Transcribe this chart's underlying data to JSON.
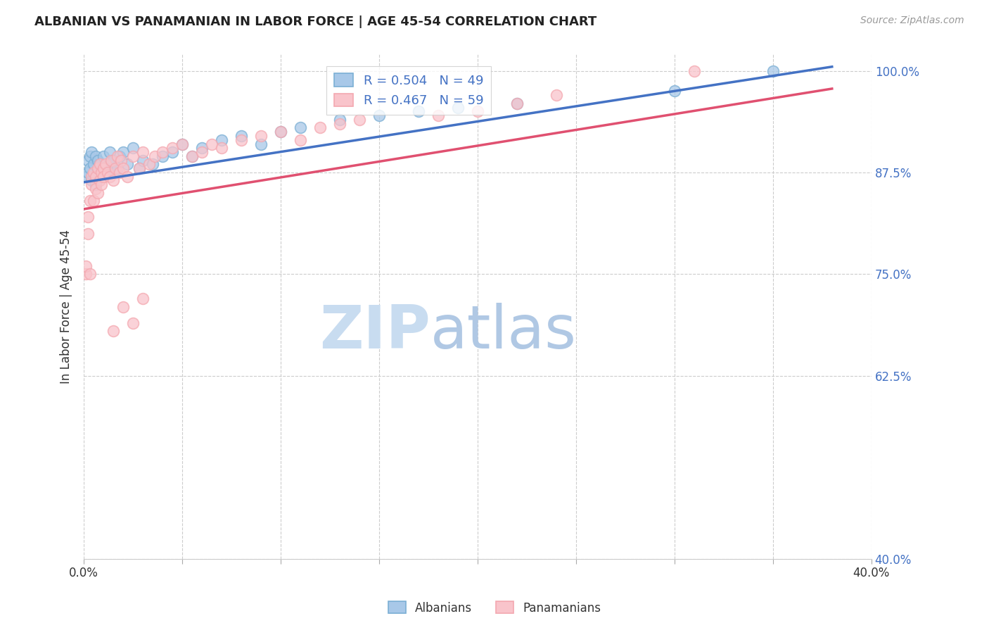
{
  "title": "ALBANIAN VS PANAMANIAN IN LABOR FORCE | AGE 45-54 CORRELATION CHART",
  "source": "Source: ZipAtlas.com",
  "ylabel": "In Labor Force | Age 45-54",
  "xlim": [
    0.0,
    0.4
  ],
  "ylim": [
    0.4,
    1.02
  ],
  "xtick_vals": [
    0.0,
    0.05,
    0.1,
    0.15,
    0.2,
    0.25,
    0.3,
    0.35,
    0.4
  ],
  "xtick_labels": [
    "0.0%",
    "",
    "",
    "",
    "",
    "",
    "",
    "",
    "40.0%"
  ],
  "ytick_vals": [
    0.4,
    0.625,
    0.75,
    0.875,
    1.0
  ],
  "ytick_labels": [
    "40.0%",
    "62.5%",
    "75.0%",
    "87.5%",
    "100.0%"
  ],
  "grid_color": "#cccccc",
  "background_color": "#ffffff",
  "legend_line1": "R = 0.504   N = 49",
  "legend_line2": "R = 0.467   N = 59",
  "legend_label_albanians": "Albanians",
  "legend_label_panamanians": "Panamanians",
  "blue_color": "#7BAFD4",
  "pink_color": "#F4A8B0",
  "blue_fill": "#A8C8E8",
  "pink_fill": "#F9C4CB",
  "blue_line_color": "#4472C4",
  "pink_line_color": "#E05070",
  "r_n_text_color": "#4472C4",
  "watermark_zip_color": "#C8DCF0",
  "watermark_atlas_color": "#B0C8E4",
  "albanians_x": [
    0.001,
    0.002,
    0.002,
    0.003,
    0.003,
    0.004,
    0.004,
    0.005,
    0.005,
    0.006,
    0.006,
    0.007,
    0.007,
    0.008,
    0.008,
    0.009,
    0.01,
    0.01,
    0.011,
    0.012,
    0.013,
    0.014,
    0.015,
    0.016,
    0.017,
    0.018,
    0.02,
    0.022,
    0.025,
    0.028,
    0.03,
    0.035,
    0.04,
    0.045,
    0.05,
    0.055,
    0.06,
    0.07,
    0.08,
    0.09,
    0.1,
    0.11,
    0.13,
    0.15,
    0.17,
    0.19,
    0.22,
    0.3,
    0.35
  ],
  "albanians_y": [
    0.87,
    0.875,
    0.89,
    0.88,
    0.895,
    0.865,
    0.9,
    0.87,
    0.885,
    0.86,
    0.895,
    0.875,
    0.89,
    0.87,
    0.885,
    0.88,
    0.875,
    0.895,
    0.88,
    0.875,
    0.9,
    0.885,
    0.89,
    0.875,
    0.88,
    0.895,
    0.9,
    0.885,
    0.905,
    0.88,
    0.89,
    0.885,
    0.895,
    0.9,
    0.91,
    0.895,
    0.905,
    0.915,
    0.92,
    0.91,
    0.925,
    0.93,
    0.94,
    0.945,
    0.95,
    0.955,
    0.96,
    0.975,
    1.0
  ],
  "panamanians_x": [
    0.001,
    0.001,
    0.002,
    0.002,
    0.003,
    0.003,
    0.004,
    0.004,
    0.005,
    0.005,
    0.006,
    0.006,
    0.007,
    0.007,
    0.008,
    0.008,
    0.009,
    0.009,
    0.01,
    0.01,
    0.011,
    0.012,
    0.013,
    0.014,
    0.015,
    0.016,
    0.017,
    0.018,
    0.019,
    0.02,
    0.022,
    0.025,
    0.028,
    0.03,
    0.033,
    0.036,
    0.04,
    0.045,
    0.05,
    0.055,
    0.06,
    0.065,
    0.07,
    0.08,
    0.09,
    0.1,
    0.11,
    0.12,
    0.13,
    0.14,
    0.015,
    0.02,
    0.025,
    0.03,
    0.18,
    0.2,
    0.22,
    0.24,
    0.31
  ],
  "panamanians_y": [
    0.75,
    0.76,
    0.8,
    0.82,
    0.75,
    0.84,
    0.87,
    0.86,
    0.84,
    0.875,
    0.855,
    0.87,
    0.88,
    0.85,
    0.865,
    0.885,
    0.875,
    0.86,
    0.88,
    0.87,
    0.885,
    0.875,
    0.87,
    0.89,
    0.865,
    0.88,
    0.895,
    0.875,
    0.89,
    0.88,
    0.87,
    0.895,
    0.88,
    0.9,
    0.885,
    0.895,
    0.9,
    0.905,
    0.91,
    0.895,
    0.9,
    0.91,
    0.905,
    0.915,
    0.92,
    0.925,
    0.915,
    0.93,
    0.935,
    0.94,
    0.68,
    0.71,
    0.69,
    0.72,
    0.945,
    0.95,
    0.96,
    0.97,
    1.0
  ]
}
